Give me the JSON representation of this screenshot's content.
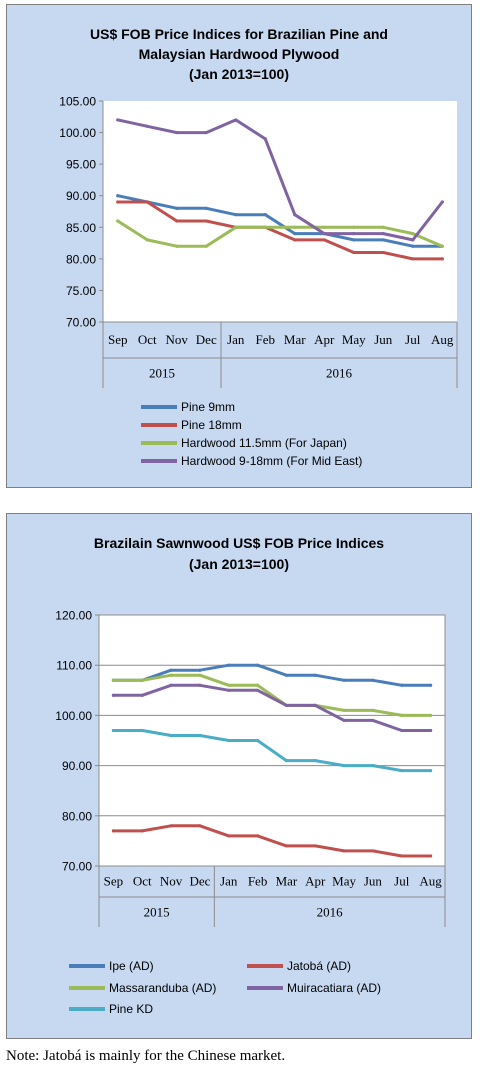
{
  "colors": {
    "panel_bg": "#c6d9f1",
    "plot_bg": "#ffffff",
    "blue": "#4a7ebb",
    "red": "#c0504d",
    "green": "#9bbb59",
    "purple": "#8064a2",
    "teal": "#4bacc6"
  },
  "chart_data": [
    {
      "type": "line",
      "title": "US$ FOB Price Indices for Brazilian Pine and Malaysian Hardwood Plywood",
      "title_lines": [
        "US$ FOB Price Indices for Brazilian  Pine and",
        "Malaysian Hardwood Plywood",
        "(Jan 2013=100)"
      ],
      "subtitle": "(Jan 2013=100)",
      "categories": [
        "Sep",
        "Oct",
        "Nov",
        "Dec",
        "Jan",
        "Feb",
        "Mar",
        "Apr",
        "May",
        "Jun",
        "Jul",
        "Aug"
      ],
      "category_groups": [
        {
          "label": "2015",
          "from": 0,
          "to": 3
        },
        {
          "label": "2016",
          "from": 4,
          "to": 11
        }
      ],
      "ylim": [
        70,
        105
      ],
      "yticks": [
        "70.00",
        "75.00",
        "80.00",
        "85.00",
        "90.00",
        "95.00",
        "100.00",
        "105.00"
      ],
      "ytick_values": [
        70,
        75,
        80,
        85,
        90,
        95,
        100,
        105
      ],
      "grid": false,
      "legend_placement": "bottom",
      "series": [
        {
          "name": "Pine 9mm",
          "color": "#4a7ebb",
          "values": [
            90,
            89,
            88,
            88,
            87,
            87,
            84,
            84,
            83,
            83,
            82,
            82
          ]
        },
        {
          "name": "Pine 18mm",
          "color": "#c0504d",
          "values": [
            89,
            89,
            86,
            86,
            85,
            85,
            83,
            83,
            81,
            81,
            80,
            80
          ]
        },
        {
          "name": "Hardwood 11.5mm (For Japan)",
          "color": "#9bbb59",
          "values": [
            86,
            83,
            82,
            82,
            85,
            85,
            85,
            85,
            85,
            85,
            84,
            82
          ]
        },
        {
          "name": "Hardwood 9-18mm (For Mid East)",
          "color": "#8064a2",
          "values": [
            102,
            101,
            100,
            100,
            102,
            99,
            87,
            84,
            84,
            84,
            83,
            89
          ]
        }
      ]
    },
    {
      "type": "line",
      "title": "Brazilain Sawnwood US$ FOB Price Indices",
      "title_lines": [
        "Brazilain Sawnwood US$ FOB Price Indices",
        "(Jan 2013=100)"
      ],
      "subtitle": "(Jan 2013=100)",
      "categories": [
        "Sep",
        "Oct",
        "Nov",
        "Dec",
        "Jan",
        "Feb",
        "Mar",
        "Apr",
        "May",
        "Jun",
        "Jul",
        "Aug"
      ],
      "category_groups": [
        {
          "label": "2015",
          "from": 0,
          "to": 3
        },
        {
          "label": "2016",
          "from": 4,
          "to": 11
        }
      ],
      "ylim": [
        70,
        120
      ],
      "yticks": [
        "70.00",
        "80.00",
        "90.00",
        "100.00",
        "110.00",
        "120.00"
      ],
      "ytick_values": [
        70,
        80,
        90,
        100,
        110,
        120
      ],
      "grid": true,
      "legend_placement": "bottom",
      "series": [
        {
          "name": "Ipe (AD)",
          "color": "#4a7ebb",
          "values": [
            107,
            107,
            109,
            109,
            110,
            110,
            108,
            108,
            107,
            107,
            106,
            106
          ]
        },
        {
          "name": "Jatobá (AD)",
          "color": "#c0504d",
          "values": [
            77,
            77,
            78,
            78,
            76,
            76,
            74,
            74,
            73,
            73,
            72,
            72
          ]
        },
        {
          "name": "Massaranduba (AD)",
          "color": "#9bbb59",
          "values": [
            107,
            107,
            108,
            108,
            106,
            106,
            102,
            102,
            101,
            101,
            100,
            100
          ]
        },
        {
          "name": "Muiracatiara (AD)",
          "color": "#8064a2",
          "values": [
            104,
            104,
            106,
            106,
            105,
            105,
            102,
            102,
            99,
            99,
            97,
            97
          ]
        },
        {
          "name": "Pine KD",
          "color": "#4bacc6",
          "values": [
            97,
            97,
            96,
            96,
            95,
            95,
            91,
            91,
            90,
            90,
            89,
            89
          ]
        }
      ]
    }
  ],
  "note": "Note: Jatobá is mainly for the Chinese market."
}
